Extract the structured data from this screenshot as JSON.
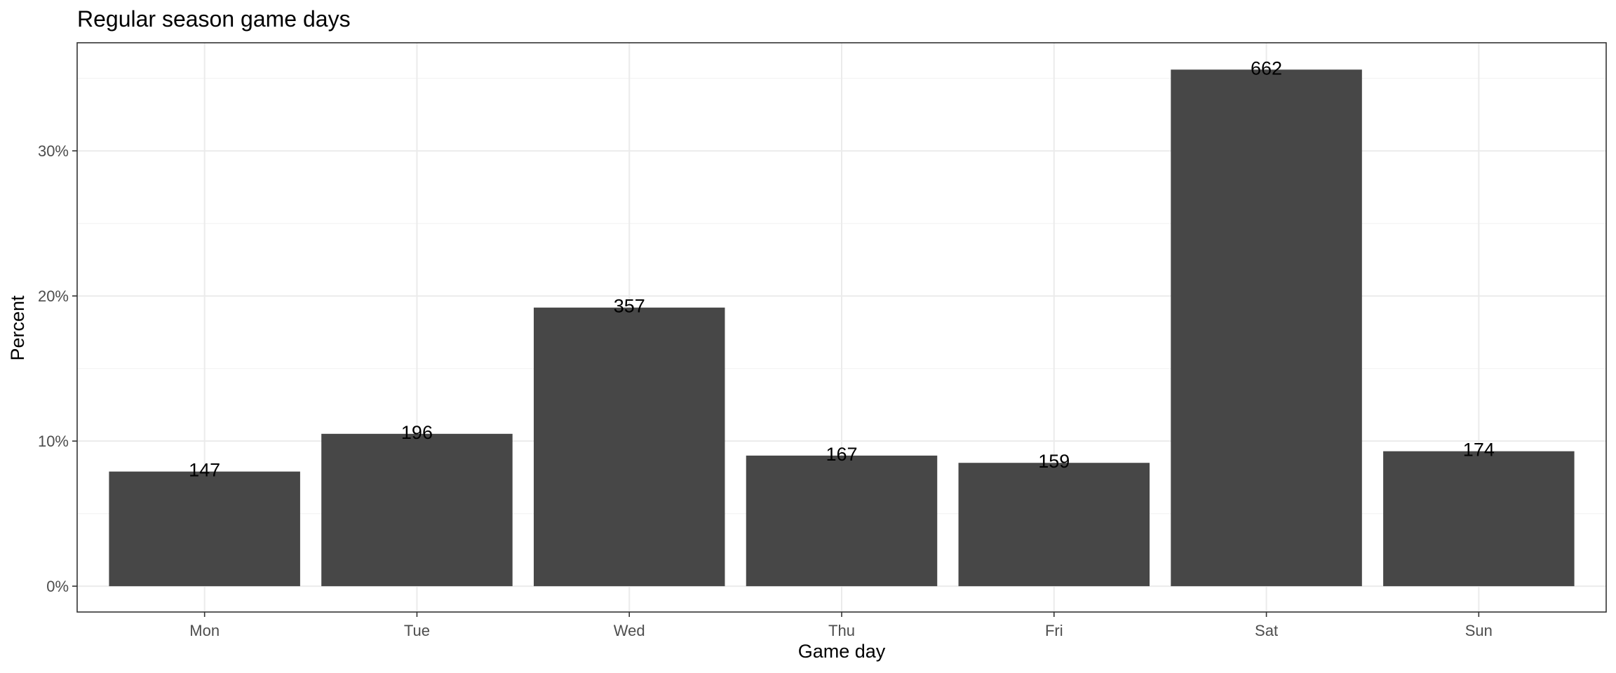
{
  "chart_data": {
    "type": "bar",
    "title": "Regular season game days",
    "xlabel": "Game day",
    "ylabel": "Percent",
    "categories": [
      "Mon",
      "Tue",
      "Wed",
      "Thu",
      "Fri",
      "Sat",
      "Sun"
    ],
    "values": [
      7.9,
      10.5,
      19.2,
      9.0,
      8.5,
      35.6,
      9.3
    ],
    "value_unit": "percent",
    "counts": [
      "147",
      "196",
      "357",
      "167",
      "159",
      "662",
      "174"
    ],
    "ylim": [
      -1.78,
      37.45
    ],
    "yticks": [
      0,
      10,
      20,
      30
    ],
    "ytick_labels": [
      "0%",
      "10%",
      "20%",
      "30%"
    ],
    "grid": true,
    "legend": "none",
    "bar_color": "#474747"
  }
}
